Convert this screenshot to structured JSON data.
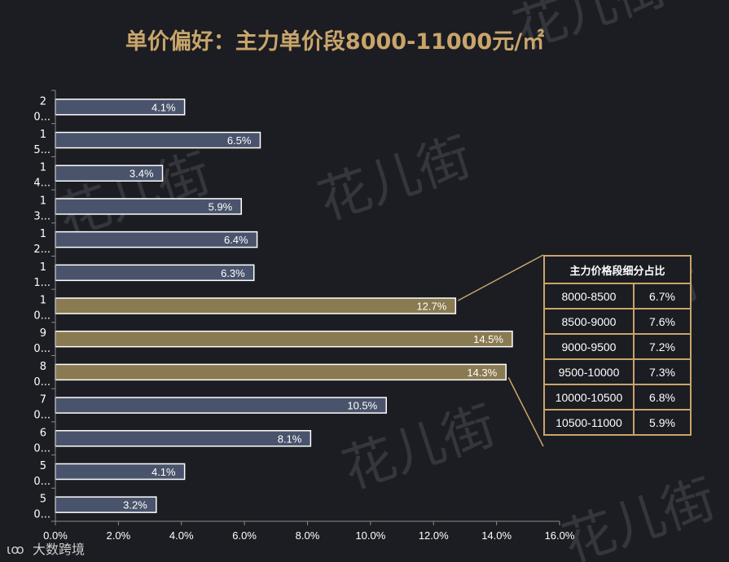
{
  "title": "单价偏好：主力单价段8000-11000元/㎡",
  "logo": {
    "mark": "ιꝏ",
    "text": "大数跨境"
  },
  "watermark": "花儿街",
  "colors": {
    "background": "#1b1d22",
    "bar_normal": "#49536b",
    "bar_highlight": "#8a7a52",
    "accent": "#c9a56b",
    "bar_border": "#ffffff"
  },
  "chart_data": {
    "type": "bar",
    "orientation": "horizontal",
    "categories": [
      "2\n0...",
      "1\n5...",
      "1\n4...",
      "1\n3...",
      "1\n2...",
      "1\n1...",
      "1\n0...",
      "9\n0...",
      "8\n0...",
      "7\n0...",
      "6\n0...",
      "5\n0...",
      "5\n0..."
    ],
    "values": [
      4.1,
      6.5,
      3.4,
      5.9,
      6.4,
      6.3,
      12.7,
      14.5,
      14.3,
      10.5,
      8.1,
      4.1,
      3.2
    ],
    "data_labels": [
      "4.1%",
      "6.5%",
      "3.4%",
      "5.9%",
      "6.4%",
      "6.3%",
      "12.7%",
      "14.5%",
      "14.3%",
      "10.5%",
      "8.1%",
      "4.1%",
      "3.2%"
    ],
    "highlighted": [
      false,
      false,
      false,
      false,
      false,
      false,
      true,
      true,
      true,
      false,
      false,
      false,
      false
    ],
    "xlim": [
      0,
      16
    ],
    "xticks": [
      "0.0%",
      "2.0%",
      "4.0%",
      "6.0%",
      "8.0%",
      "10.0%",
      "12.0%",
      "14.0%",
      "16.0%"
    ],
    "grid": false
  },
  "detail_table": {
    "header": "主力价格段细分占比",
    "rows": [
      {
        "range": "8000-8500",
        "pct": "6.7%"
      },
      {
        "range": "8500-9000",
        "pct": "7.6%"
      },
      {
        "range": "9000-9500",
        "pct": "7.2%"
      },
      {
        "range": "9500-10000",
        "pct": "7.3%"
      },
      {
        "range": "10000-10500",
        "pct": "6.8%"
      },
      {
        "range": "10500-11000",
        "pct": "5.9%"
      }
    ]
  }
}
